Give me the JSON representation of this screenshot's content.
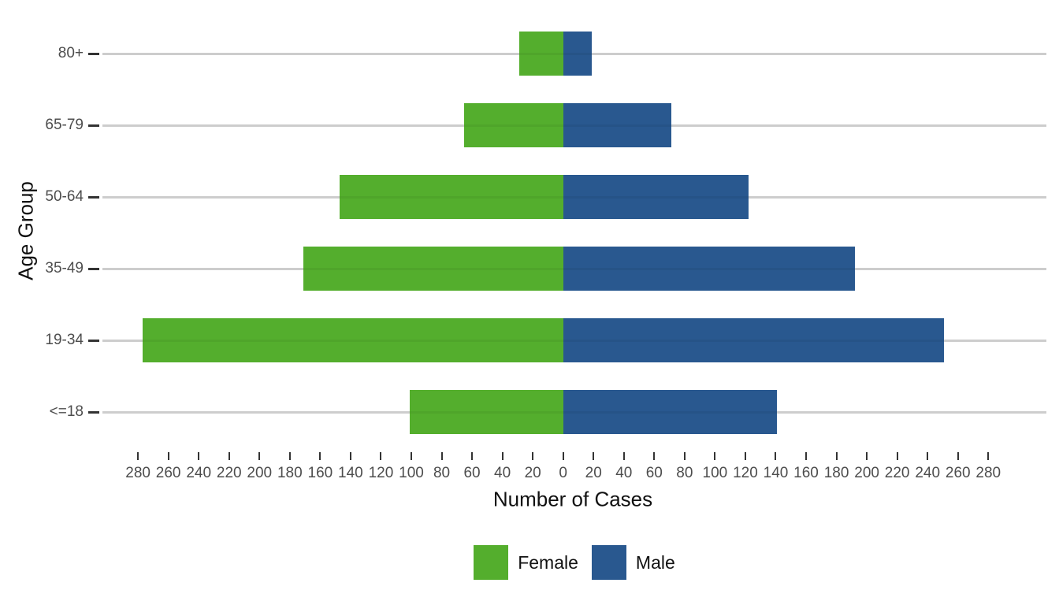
{
  "chart_data": {
    "type": "bar",
    "subtype": "population-pyramid-diverging-stacked",
    "orientation": "horizontal",
    "title": "",
    "xlabel": "Number of Cases",
    "ylabel": "Age Group",
    "categories": [
      "80+",
      "65-79",
      "50-64",
      "35-49",
      "19-34",
      "<=18"
    ],
    "series": [
      {
        "name": "Female",
        "color": "#54AE2D",
        "values": [
          29,
          65,
          147,
          171,
          277,
          101
        ]
      },
      {
        "name": "Male",
        "color": "#29588F",
        "values": [
          19,
          71,
          122,
          192,
          251,
          141
        ]
      }
    ],
    "x_axis": {
      "min": -280,
      "max": 280,
      "tick_step": 20,
      "tick_labels_absolute": true,
      "tick_labels": [
        "280",
        "260",
        "240",
        "220",
        "200",
        "180",
        "160",
        "140",
        "120",
        "100",
        "80",
        "60",
        "40",
        "20",
        "0",
        "20",
        "40",
        "60",
        "80",
        "100",
        "120",
        "140",
        "160",
        "180",
        "200",
        "220",
        "240",
        "260",
        "280"
      ]
    },
    "y_axis": {
      "tick_labels": [
        "80+",
        "65-79",
        "50-64",
        "35-49",
        "19-34",
        "<=18"
      ]
    },
    "legend": {
      "position": "bottom",
      "entries": [
        "Female",
        "Male"
      ]
    },
    "grid": "horizontal-major-only"
  },
  "colors": {
    "background": "#FFFFFF",
    "gridline": "#D8D8D8",
    "grid_stripe_overlay": "rgba(0,0,0,0.05)",
    "tick_mark": "#333333",
    "tick_label_text": "#4D4D4D",
    "axis_title_text": "#111111",
    "legend_label_text": "#111111"
  }
}
